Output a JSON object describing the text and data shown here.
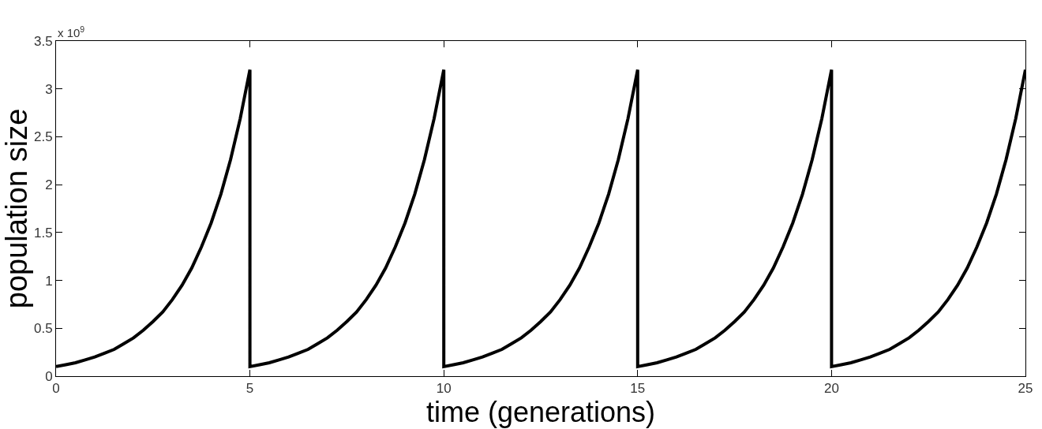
{
  "chart_data": {
    "type": "line",
    "xlabel": "time (generations)",
    "ylabel": "population size",
    "annotations": [
      "x 10$^{9}$"
    ],
    "x": [
      0,
      0.25,
      0.5,
      0.75,
      1,
      1.25,
      1.5,
      1.75,
      2,
      2.25,
      2.5,
      2.75,
      3,
      3.25,
      3.5,
      3.75,
      4,
      4.25,
      4.5,
      4.75,
      5,
      5,
      5.25,
      5.5,
      5.75,
      6,
      6.25,
      6.5,
      6.75,
      7,
      7.25,
      7.5,
      7.75,
      8,
      8.25,
      8.5,
      8.75,
      9,
      9.25,
      9.5,
      9.75,
      10,
      10,
      10.25,
      10.5,
      10.75,
      11,
      11.25,
      11.5,
      11.75,
      12,
      12.25,
      12.5,
      12.75,
      13,
      13.25,
      13.5,
      13.75,
      14,
      14.25,
      14.5,
      14.75,
      15,
      15,
      15.25,
      15.5,
      15.75,
      16,
      16.25,
      16.5,
      16.75,
      17,
      17.25,
      17.5,
      17.75,
      18,
      18.25,
      18.5,
      18.75,
      19,
      19.25,
      19.5,
      19.75,
      20,
      20,
      20.25,
      20.5,
      20.75,
      21,
      21.25,
      21.5,
      21.75,
      22,
      22.25,
      22.5,
      22.75,
      23,
      23.25,
      23.5,
      23.75,
      24,
      24.25,
      24.5,
      24.75,
      25
    ],
    "series": [
      {
        "color": "#000000",
        "values": [
          0.1,
          0.12,
          0.14,
          0.17,
          0.2,
          0.24,
          0.28,
          0.34,
          0.4,
          0.48,
          0.57,
          0.67,
          0.8,
          0.95,
          1.13,
          1.35,
          1.6,
          1.9,
          2.26,
          2.69,
          3.2,
          0.1,
          0.12,
          0.14,
          0.17,
          0.2,
          0.24,
          0.28,
          0.34,
          0.4,
          0.48,
          0.57,
          0.67,
          0.8,
          0.95,
          1.13,
          1.35,
          1.6,
          1.9,
          2.26,
          2.69,
          3.2,
          0.1,
          0.12,
          0.14,
          0.17,
          0.2,
          0.24,
          0.28,
          0.34,
          0.4,
          0.48,
          0.57,
          0.67,
          0.8,
          0.95,
          1.13,
          1.35,
          1.6,
          1.9,
          2.26,
          2.69,
          3.2,
          0.1,
          0.12,
          0.14,
          0.17,
          0.2,
          0.24,
          0.28,
          0.34,
          0.4,
          0.48,
          0.57,
          0.67,
          0.8,
          0.95,
          1.13,
          1.35,
          1.6,
          1.9,
          2.26,
          2.69,
          3.2,
          0.1,
          0.12,
          0.14,
          0.17,
          0.2,
          0.24,
          0.28,
          0.34,
          0.4,
          0.48,
          0.57,
          0.67,
          0.8,
          0.95,
          1.13,
          1.35,
          1.6,
          1.9,
          2.26,
          2.69,
          3.2
        ]
      }
    ],
    "xlim": [
      0,
      25
    ],
    "xticks": [
      0,
      5,
      10,
      15,
      20,
      25
    ],
    "ylim": [
      0,
      3.5
    ],
    "yticks": [
      0,
      0.5,
      1,
      1.5,
      2,
      2.5,
      3,
      3.5
    ],
    "marker": "none",
    "line_style": "solid"
  }
}
